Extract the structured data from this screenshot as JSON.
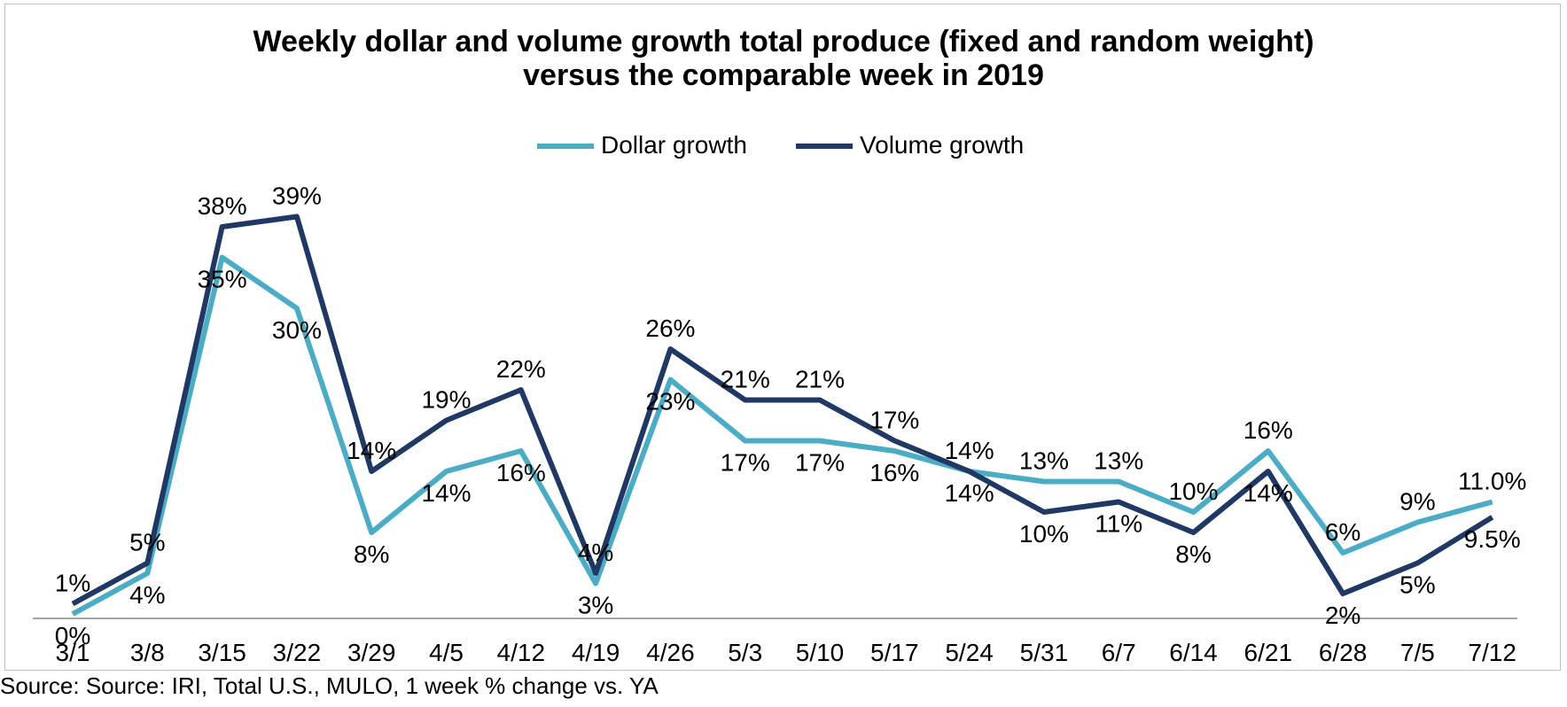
{
  "chart_data": {
    "type": "line",
    "title_lines": [
      "Weekly dollar and volume growth  total produce (fixed and random weight)",
      "versus the comparable week in 2019"
    ],
    "categories": [
      "3/1",
      "3/8",
      "3/15",
      "3/22",
      "3/29",
      "4/5",
      "4/12",
      "4/19",
      "4/26",
      "5/3",
      "5/10",
      "5/17",
      "5/24",
      "5/31",
      "6/7",
      "6/14",
      "6/21",
      "6/28",
      "7/5",
      "7/12"
    ],
    "series": [
      {
        "name": "Dollar growth",
        "color": "#4bacc6",
        "values": [
          0,
          4,
          35,
          30,
          8,
          14,
          16,
          3,
          23,
          17,
          17,
          16,
          14,
          13,
          13,
          10,
          16,
          6,
          9,
          11.0
        ],
        "labels": [
          "0%",
          "4%",
          "35%",
          "30%",
          "8%",
          "14%",
          "16%",
          "3%",
          "23%",
          "17%",
          "17%",
          "16%",
          "14%",
          "13%",
          "13%",
          "10%",
          "16%",
          "6%",
          "9%",
          "11.0%"
        ]
      },
      {
        "name": "Volume growth",
        "color": "#1f3864",
        "values": [
          1,
          5,
          38,
          39,
          14,
          19,
          22,
          4,
          26,
          21,
          21,
          17,
          14,
          10,
          11,
          8,
          14,
          2,
          5,
          9.5
        ],
        "labels": [
          "1%",
          "5%",
          "38%",
          "39%",
          "14%",
          "19%",
          "22%",
          "4%",
          "26%",
          "21%",
          "21%",
          "17%",
          "14%",
          "10%",
          "11%",
          "8%",
          "14%",
          "2%",
          "5%",
          "9.5%"
        ]
      }
    ],
    "ylim": [
      -1.3,
      42
    ],
    "grid": false,
    "legend_position": "top-center"
  },
  "source": "Source: Source: IRI, Total U.S., MULO, 1 week % change vs. YA"
}
